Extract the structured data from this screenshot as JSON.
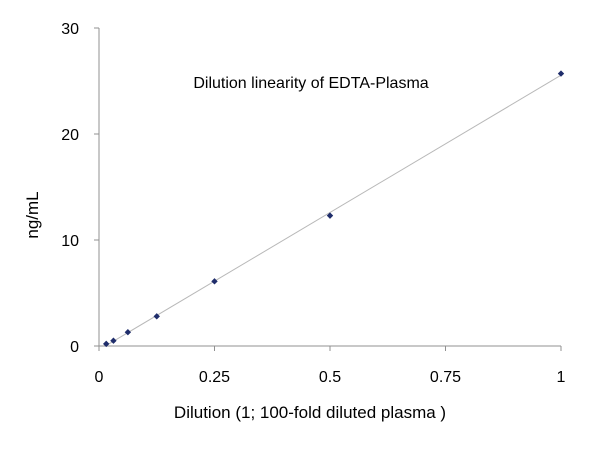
{
  "chart_data": {
    "type": "scatter",
    "title": "Dilution linearity of EDTA-Plasma",
    "xlabel": "Dilution (1; 100-fold diluted plasma )",
    "ylabel": "ng/mL",
    "xlim": [
      0,
      1
    ],
    "ylim": [
      0,
      30
    ],
    "xticks": [
      0,
      0.25,
      0.5,
      0.75,
      1
    ],
    "xtick_labels": [
      "0",
      "0.25",
      "0.5",
      "0.75",
      "1"
    ],
    "yticks": [
      0,
      10,
      20,
      30
    ],
    "ytick_labels": [
      "0",
      "10",
      "20",
      "30"
    ],
    "grid": false,
    "legend": "none",
    "marker": "diamond",
    "trendline": "linear",
    "colors": {
      "marker": "#1f2d6b",
      "trendline": "#b8b8b8",
      "axis": "#909090"
    },
    "series": [
      {
        "x": [
          0.015625,
          0.03125,
          0.0625,
          0.125,
          0.25,
          0.5,
          1
        ],
        "y": [
          0.2,
          0.5,
          1.3,
          2.8,
          6.1,
          12.3,
          25.7
        ]
      }
    ]
  }
}
